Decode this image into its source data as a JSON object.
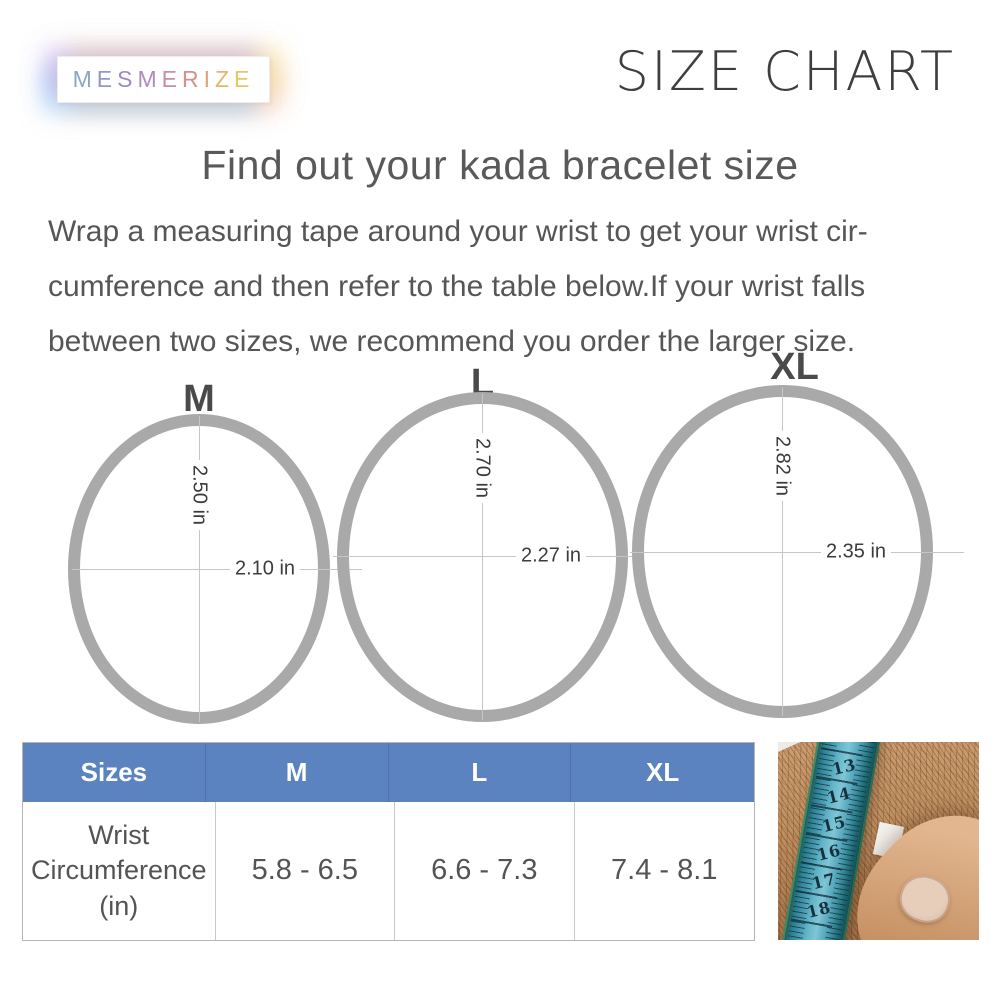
{
  "brand": {
    "name": "MESMERIZE",
    "letters": [
      {
        "ch": "M",
        "color": "#8aa5c5"
      },
      {
        "ch": "E",
        "color": "#9497c7"
      },
      {
        "ch": "S",
        "color": "#9e8bc1"
      },
      {
        "ch": "M",
        "color": "#ae8cbc"
      },
      {
        "ch": "E",
        "color": "#c48fa7"
      },
      {
        "ch": "R",
        "color": "#d5918b"
      },
      {
        "ch": "I",
        "color": "#dda47d"
      },
      {
        "ch": "Z",
        "color": "#e2b671"
      },
      {
        "ch": "E",
        "color": "#e6c765"
      }
    ]
  },
  "page_title": "SIZE CHART",
  "heading": "Find out your kada bracelet size",
  "description": {
    "lines": [
      "Wrap a measuring tape around your wrist to get your wrist cir-",
      "cumference and then refer to the table below.If your wrist falls",
      "between two sizes, we recommend you order the larger size."
    ]
  },
  "rings": [
    {
      "label": "M",
      "vertical_diameter": "2.50 in",
      "horizontal_diameter": "2.10 in"
    },
    {
      "label": "L",
      "vertical_diameter": "2.70 in",
      "horizontal_diameter": "2.27 in"
    },
    {
      "label": "XL",
      "vertical_diameter": "2.82 in",
      "horizontal_diameter": "2.35 in"
    }
  ],
  "size_table": {
    "headers": [
      "Sizes",
      "M",
      "L",
      "XL"
    ],
    "row_label": "Wrist Circumference (in)",
    "values": [
      "5.8 - 6.5",
      "6.6 - 7.3",
      "7.4 - 8.1"
    ]
  },
  "photo": {
    "tape_numbers": [
      "13",
      "14",
      "15",
      "16",
      "17",
      "18"
    ]
  },
  "colors": {
    "table_header_bg": "#5b83bf",
    "ring_stroke": "#a9a9a9",
    "body_text": "#565656",
    "title_text": "#3e3e3e",
    "tape_teal": "#4aa0b5"
  }
}
